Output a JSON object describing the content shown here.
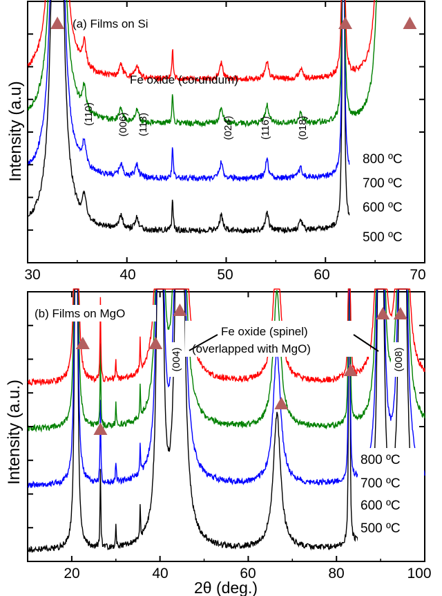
{
  "chart_data": [
    {
      "type": "line",
      "panel_label": "(a) Films on Si",
      "annotation": "Fe oxide (corundum)",
      "xlabel": "",
      "ylabel": "Intensity (a.u)",
      "xlim": [
        30,
        70
      ],
      "x_ticks": [
        "30",
        "40",
        "50",
        "60",
        "70"
      ],
      "x_tick_values": [
        30,
        40,
        50,
        60,
        70
      ],
      "grid": false,
      "series": [
        {
          "name": "800 ºC",
          "color": "#ff0000",
          "baseline": 0.7
        },
        {
          "name": "700 ºC",
          "color": "#008000",
          "baseline": 0.53
        },
        {
          "name": "600 ºC",
          "color": "#0000ff",
          "baseline": 0.32
        },
        {
          "name": "500 ºC",
          "color": "#000000",
          "baseline": 0.12
        }
      ],
      "peaks": [
        {
          "x": 33.0,
          "width": 0.35,
          "height": 4.0,
          "shift": [
            0.05,
            0.05,
            0.05,
            0.05
          ]
        },
        {
          "x": 35.7,
          "width": 0.2,
          "height": 0.09
        },
        {
          "x": 39.4,
          "width": 0.2,
          "height": 0.05
        },
        {
          "x": 41.0,
          "width": 0.2,
          "height": 0.05
        },
        {
          "x": 44.6,
          "width": 0.07,
          "height": 0.12
        },
        {
          "x": 49.5,
          "width": 0.2,
          "height": 0.06
        },
        {
          "x": 54.1,
          "width": 0.2,
          "height": 0.07
        },
        {
          "x": 57.5,
          "width": 0.2,
          "height": 0.04
        },
        {
          "x": 61.8,
          "width": 0.06,
          "height": 4.0
        },
        {
          "x": 65.8,
          "width": 0.25,
          "height": 4.0
        }
      ],
      "data_end_x": [
        66.2,
        65.8,
        62.4,
        62.4
      ],
      "peak_labels": [
        {
          "text": "(110)",
          "x": 35.7
        },
        {
          "text": "(006)",
          "x": 39.3
        },
        {
          "text": "(113)",
          "x": 41.0
        },
        {
          "text": "(024)",
          "x": 49.5
        },
        {
          "text": "(116)",
          "x": 54.2
        },
        {
          "text": "(018)",
          "x": 57.7
        }
      ],
      "substrate_marker_x": [
        33.0,
        62.0,
        68.5
      ]
    },
    {
      "type": "line",
      "panel_label": "(b) Films on MgO",
      "annotation": [
        "Fe oxide (spinel)",
        "(overlapped with MgO)"
      ],
      "xlabel": "2θ (deg.)",
      "ylabel": "Intensity (a.u.)",
      "xlim": [
        10,
        100
      ],
      "x_ticks": [
        "20",
        "40",
        "60",
        "80",
        "100"
      ],
      "x_tick_values": [
        20,
        40,
        60,
        80,
        100
      ],
      "grid": false,
      "series": [
        {
          "name": "800 ºC",
          "color": "#ff0000",
          "baseline": 0.66
        },
        {
          "name": "700 ºC",
          "color": "#008000",
          "baseline": 0.49
        },
        {
          "name": "600 ºC",
          "color": "#0000ff",
          "baseline": 0.28
        },
        {
          "name": "500 ºC",
          "color": "#000000",
          "baseline": 0.04
        }
      ],
      "peaks": [
        {
          "x": 21.0,
          "width": 0.2,
          "height": 4.0
        },
        {
          "x": 26.5,
          "width": 0.1,
          "height": 0.3
        },
        {
          "x": 30.0,
          "width": 0.1,
          "height": 0.08
        },
        {
          "x": 35.5,
          "width": 0.1,
          "height": 0.12
        },
        {
          "x": 40.0,
          "width": 0.4,
          "height": 4.0
        },
        {
          "x": 44.5,
          "width": 0.6,
          "height": 4.0
        },
        {
          "x": 66.5,
          "width": 1.0,
          "height": 0.5
        },
        {
          "x": 82.9,
          "width": 0.08,
          "height": 4.0
        },
        {
          "x": 90.0,
          "width": 0.4,
          "height": 4.0
        },
        {
          "x": 95.0,
          "width": 0.5,
          "height": 4.0
        }
      ],
      "data_end_x": [
        100,
        100,
        100,
        100
      ],
      "peak_labels": [
        {
          "text": "(004)",
          "x": 43.5
        },
        {
          "text": "(008)",
          "x": 88.5
        }
      ],
      "substrate_marker_x": [
        22.5,
        26.5,
        39.0,
        44.5,
        67.5,
        83.2,
        90.5,
        94.5
      ]
    }
  ],
  "marker_color": "#b45f5f"
}
